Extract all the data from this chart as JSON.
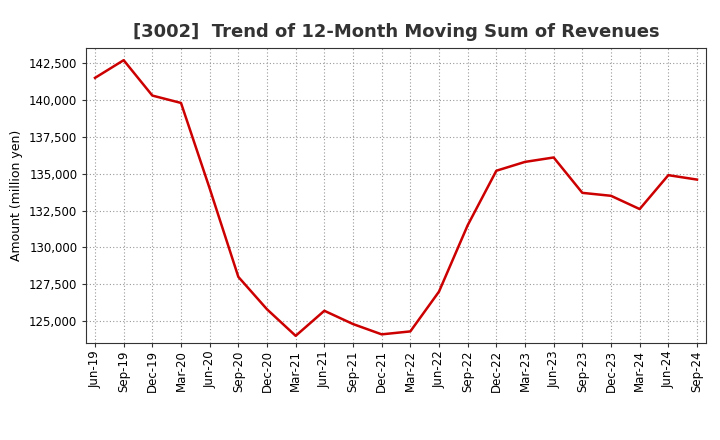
{
  "title": "[3002]  Trend of 12-Month Moving Sum of Revenues",
  "ylabel": "Amount (million yen)",
  "line_color": "#cc0000",
  "background_color": "#ffffff",
  "plot_bg_color": "#ffffff",
  "grid_color": "#999999",
  "x_labels": [
    "Jun-19",
    "Sep-19",
    "Dec-19",
    "Mar-20",
    "Jun-20",
    "Sep-20",
    "Dec-20",
    "Mar-21",
    "Jun-21",
    "Sep-21",
    "Dec-21",
    "Mar-22",
    "Jun-22",
    "Sep-22",
    "Dec-22",
    "Mar-23",
    "Jun-23",
    "Sep-23",
    "Dec-23",
    "Mar-24",
    "Jun-24",
    "Sep-24"
  ],
  "y_values": [
    141500,
    142700,
    140300,
    139800,
    134000,
    128000,
    125800,
    124000,
    125700,
    124800,
    124100,
    124300,
    127000,
    131500,
    135200,
    135800,
    136100,
    133700,
    133500,
    132600,
    134900,
    134600
  ],
  "ylim": [
    123500,
    143500
  ],
  "yticks": [
    125000,
    127500,
    130000,
    132500,
    135000,
    137500,
    140000,
    142500
  ],
  "title_fontsize": 13,
  "label_fontsize": 9,
  "tick_fontsize": 8.5
}
